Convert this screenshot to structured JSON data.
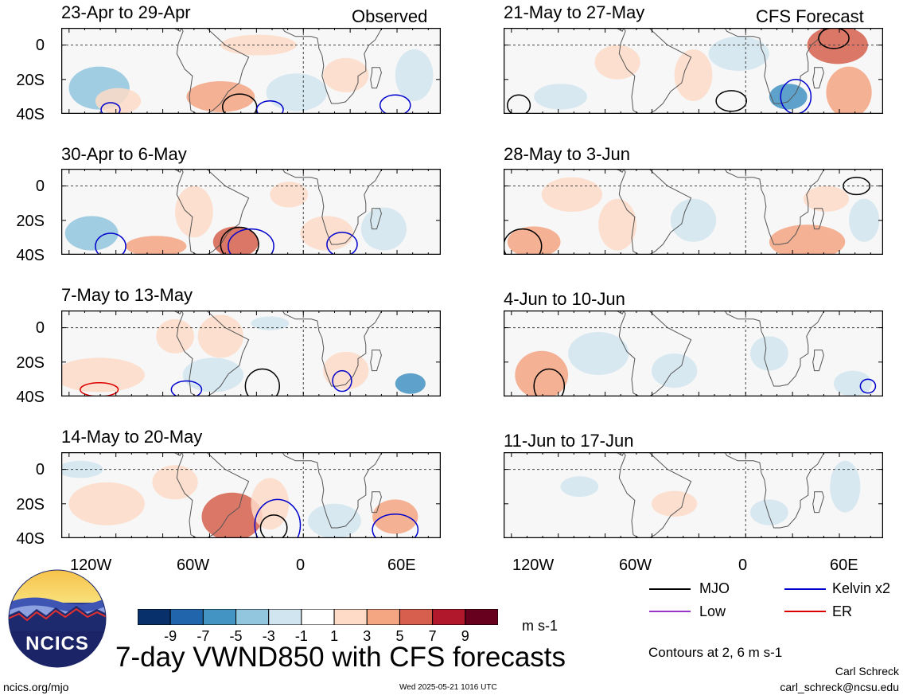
{
  "figure": {
    "title": "7-day VWND850 with CFS forecasts",
    "units": "m s-1",
    "contour_note": "Contours at 2, 6 m s-1",
    "author": "Carl Schreck",
    "email": "carl_schreck@ncsu.edu",
    "site": "ncics.org/mjo",
    "timestamp": "Wed 2025-05-21 1016 UTC",
    "logo_text": "NCICS"
  },
  "columns": {
    "left_tag": "Observed",
    "right_tag": "CFS Forecast"
  },
  "panels": [
    {
      "title": "23-Apr to 29-Apr"
    },
    {
      "title": "30-Apr to 6-May"
    },
    {
      "title": "7-May to 13-May"
    },
    {
      "title": "14-May to 20-May"
    },
    {
      "title": "21-May to 27-May"
    },
    {
      "title": "28-May to 3-Jun"
    },
    {
      "title": "4-Jun to 10-Jun"
    },
    {
      "title": "11-Jun to 17-Jun"
    }
  ],
  "axes": {
    "lat_ticks": [
      "0",
      "20S",
      "40S"
    ],
    "lon_ticks": [
      "120W",
      "60W",
      "0",
      "60E"
    ]
  },
  "colorbar": {
    "colors": [
      "#08306b",
      "#2166ac",
      "#4393c3",
      "#92c5de",
      "#d1e5f0",
      "#ffffff",
      "#fddbc7",
      "#f4a582",
      "#d6604d",
      "#b2182b",
      "#67001f"
    ],
    "labels": [
      "-9",
      "-7",
      "-5",
      "-3",
      "-1",
      "1",
      "3",
      "5",
      "7",
      "9"
    ]
  },
  "legend": {
    "items": [
      {
        "label": "MJO",
        "color": "#000000"
      },
      {
        "label": "Kelvin x2",
        "color": "#0000cc"
      },
      {
        "label": "Low",
        "color": "#9933cc"
      },
      {
        "label": "ER",
        "color": "#dd0000"
      }
    ]
  }
}
